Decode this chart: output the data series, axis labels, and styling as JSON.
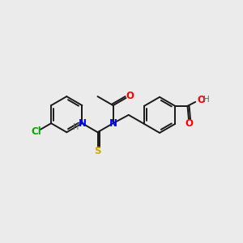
{
  "background_color": "#ebebeb",
  "bond_color": "#1a1a1a",
  "atom_colors": {
    "N": "#0000ff",
    "O": "#ff0000",
    "S": "#ccaa00",
    "Cl": "#00aa00",
    "H": "#666666",
    "C": "#1a1a1a"
  },
  "figsize": [
    3.0,
    3.0
  ],
  "dpi": 100,
  "bond_lw": 1.4,
  "font_size": 8.5
}
